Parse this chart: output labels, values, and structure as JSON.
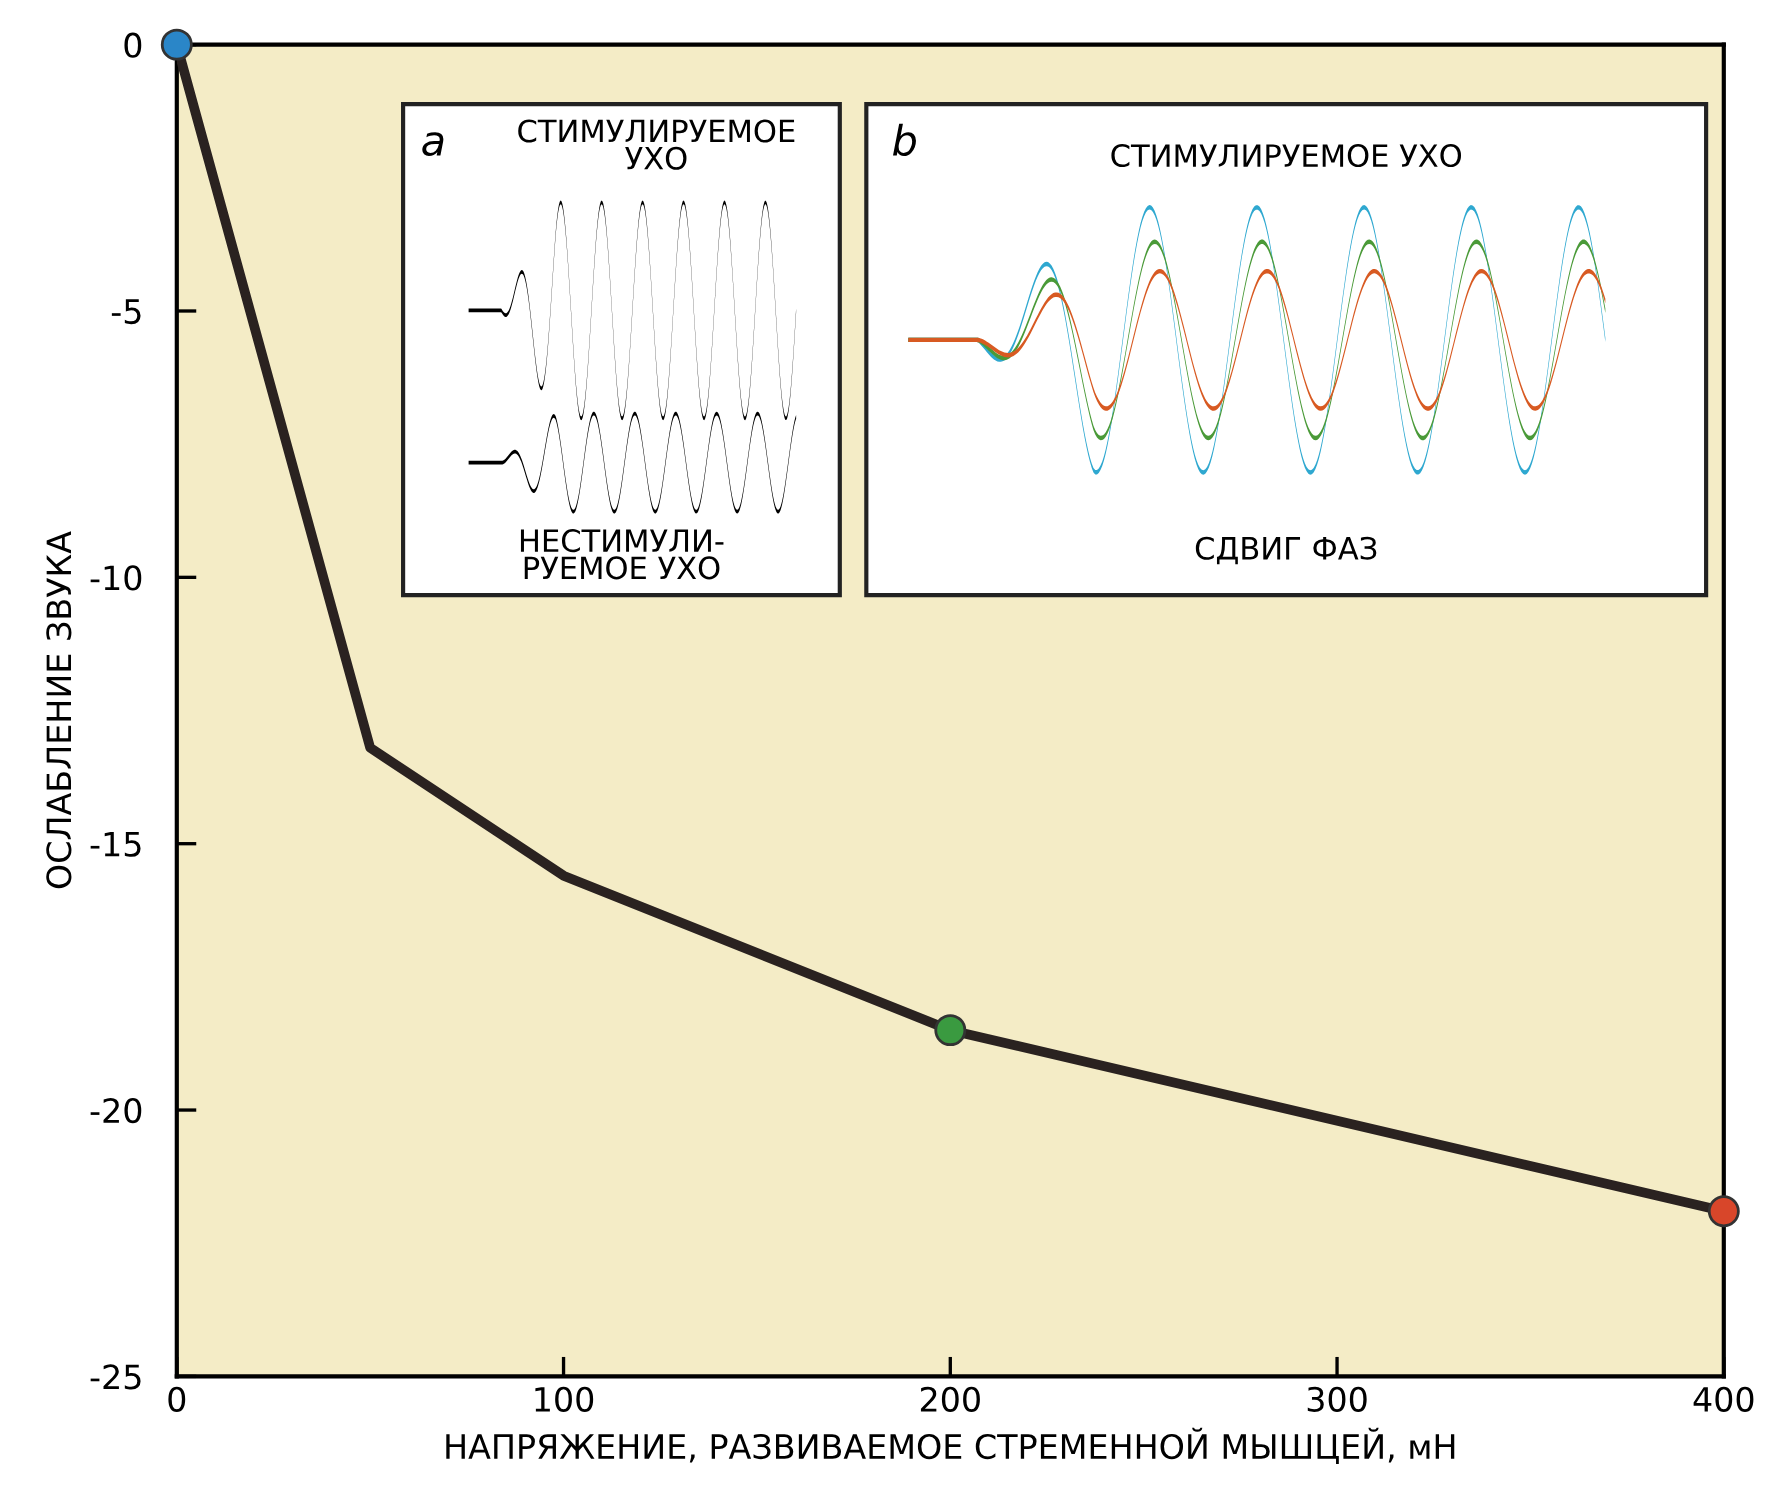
{
  "chart_data": {
    "type": "line",
    "xlabel": "НАПРЯЖЕНИЕ, РАЗВИВАЕМОЕ СТРЕМЕННОЙ МЫШЦЕЙ, мН",
    "ylabel": "ОСЛАБЛЕНИЕ ЗВУКА",
    "series": [
      {
        "color": "#2a2220",
        "x": [
          0,
          50,
          100,
          200,
          400
        ],
        "values": [
          0,
          -13.2,
          -15.6,
          -18.5,
          -21.9
        ]
      },
      {
        "type": "scatter",
        "colors": [
          "#2a86c8",
          "#3a9a40",
          "#d8462a"
        ],
        "x": [
          0,
          200,
          400
        ],
        "values": [
          0,
          -18.5,
          -21.9
        ]
      }
    ],
    "xlim": [
      0,
      400
    ],
    "ylim": [
      -25,
      0
    ],
    "xticks": [
      0,
      100,
      200,
      300,
      400
    ],
    "yticks": [
      {
        "value": 0,
        "label": "0"
      },
      {
        "value": -5,
        "label": "-5"
      },
      {
        "value": -10,
        "label": "-10"
      },
      {
        "value": -15,
        "label": "-15"
      },
      {
        "value": -20,
        "label": "-20"
      },
      {
        "value": -25,
        "label": "-25"
      }
    ],
    "grid": false,
    "annotations": [
      "a",
      "СТИМУЛИРУЕМОЕ\nУХО",
      "НЕСТИМУЛИ-\nРУЕМОЕ УХО",
      "b",
      "СТИМУЛИРУЕМОЕ УХО",
      "СДВИГ ФАЗ"
    ]
  }
}
